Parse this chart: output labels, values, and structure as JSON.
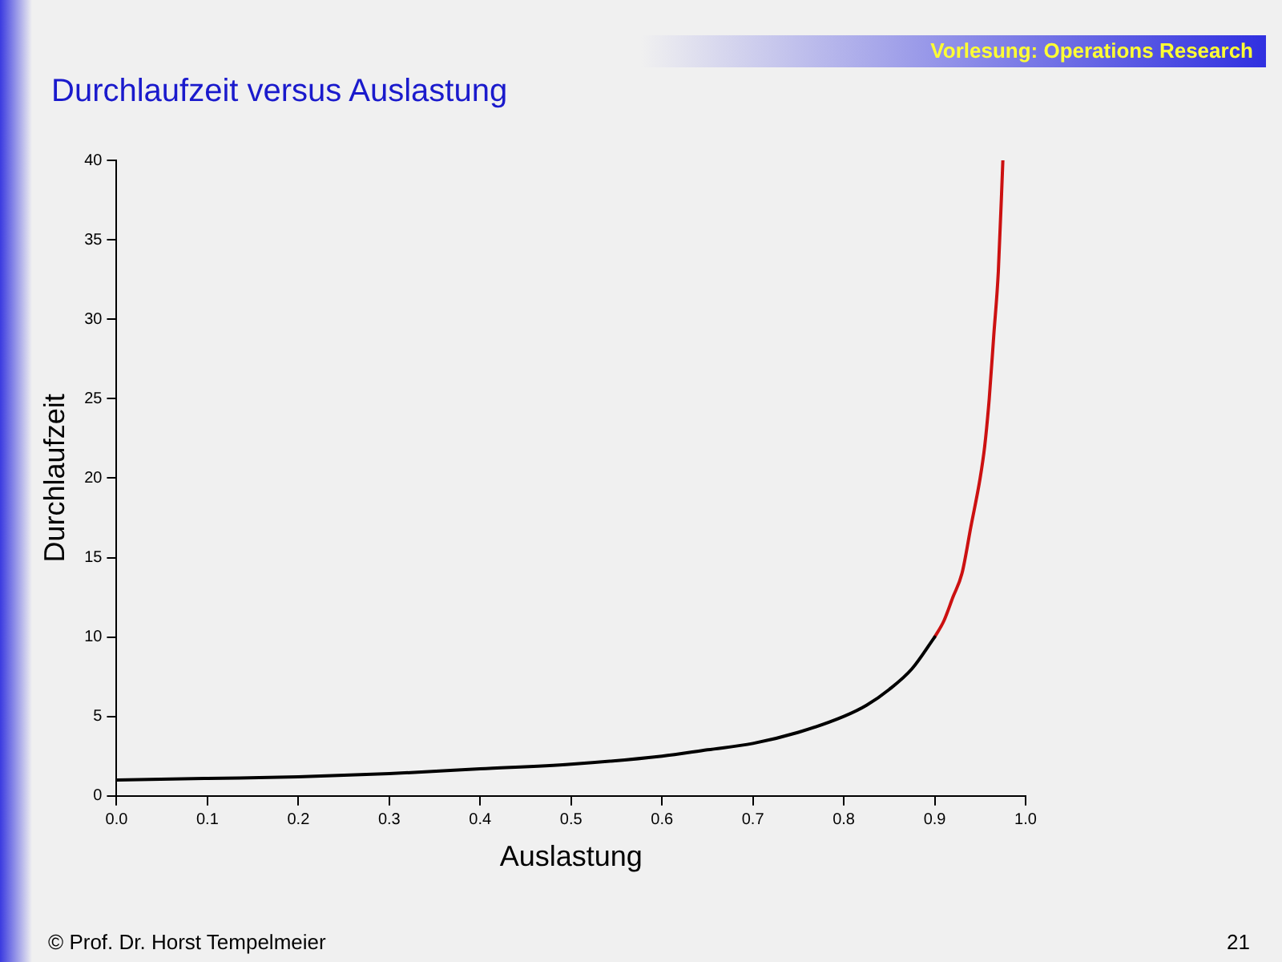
{
  "chart_data": {
    "type": "line",
    "title": "Durchlaufzeit versus Auslastung",
    "xlabel": "Auslastung",
    "ylabel": "Durchlaufzeit",
    "annotations": [
      "Vorlesung: Operations Research",
      "© Prof. Dr. Horst Tempelmeier",
      "21"
    ],
    "series": [
      {
        "color": "#000000",
        "x": [
          0,
          0.1,
          0.2,
          0.3,
          0.4,
          0.5,
          0.6,
          0.65,
          0.7,
          0.75,
          0.8,
          0.825,
          0.85,
          0.875,
          0.9
        ],
        "values": [
          1,
          1.1,
          1.2,
          1.4,
          1.7,
          2,
          2.5,
          2.9,
          3.3,
          4,
          5,
          5.7,
          6.7,
          8,
          10
        ]
      },
      {
        "color": "#cc1111",
        "x": [
          0.9,
          0.91,
          0.92,
          0.93,
          0.94,
          0.95,
          0.955,
          0.96,
          0.965,
          0.97,
          0.975
        ],
        "values": [
          10,
          11,
          12.5,
          14,
          17,
          20,
          22,
          25,
          29,
          33,
          40
        ]
      }
    ],
    "xlim": [
      0,
      1
    ],
    "xticks": [
      {
        "value": 0,
        "label": "0.0"
      },
      0.1,
      0.2,
      0.3,
      0.4,
      0.5,
      0.6,
      0.7,
      0.8,
      0.9,
      {
        "value": 1,
        "label": "1.0"
      }
    ],
    "ylim": [
      0,
      40
    ],
    "yticks": [
      0,
      5,
      10,
      15,
      20,
      25,
      30,
      35,
      40
    ],
    "grid": false,
    "legend": false,
    "marker": "none",
    "line_style": "solid"
  }
}
